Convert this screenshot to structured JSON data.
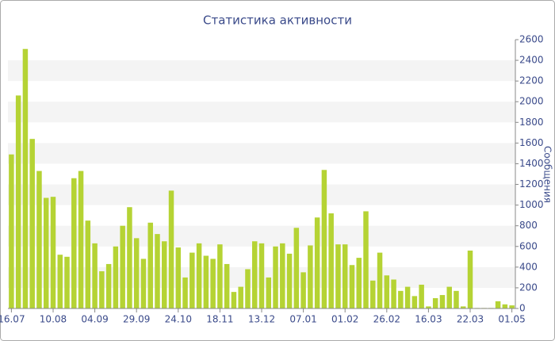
{
  "chart_data": {
    "type": "bar",
    "title": "Статистика активности",
    "y_label": "Сообщения",
    "categories": [
      "16.07",
      null,
      null,
      null,
      null,
      null,
      "10.08",
      null,
      null,
      null,
      null,
      null,
      "04.09",
      null,
      null,
      null,
      null,
      null,
      "29.09",
      null,
      null,
      null,
      null,
      null,
      "24.10",
      null,
      null,
      null,
      null,
      null,
      "18.11",
      null,
      null,
      null,
      null,
      null,
      "13.12",
      null,
      null,
      null,
      null,
      null,
      "07.01",
      null,
      null,
      null,
      null,
      null,
      "01.02",
      null,
      null,
      null,
      null,
      null,
      "26.02",
      null,
      null,
      null,
      null,
      null,
      "16.03",
      null,
      null,
      null,
      null,
      null,
      "22.03",
      null,
      null,
      null,
      null,
      null,
      "01.05"
    ],
    "values": [
      1490,
      2060,
      2510,
      1640,
      1330,
      1070,
      1080,
      520,
      500,
      1260,
      1330,
      850,
      630,
      360,
      430,
      600,
      800,
      980,
      680,
      480,
      830,
      720,
      650,
      1140,
      590,
      300,
      540,
      630,
      510,
      480,
      620,
      430,
      160,
      210,
      380,
      650,
      630,
      300,
      600,
      630,
      530,
      780,
      350,
      610,
      880,
      1340,
      920,
      620,
      620,
      420,
      490,
      940,
      270,
      540,
      320,
      280,
      170,
      210,
      120,
      230,
      20,
      100,
      130,
      210,
      170,
      20,
      560,
      5,
      5,
      5,
      70,
      40,
      30
    ],
    "color": "#b5d334",
    "ylim": [
      0,
      2600
    ],
    "yticks": [
      0,
      200,
      400,
      600,
      800,
      1000,
      1200,
      1400,
      1600,
      1800,
      2000,
      2200,
      2400,
      2600
    ],
    "grid": true
  }
}
